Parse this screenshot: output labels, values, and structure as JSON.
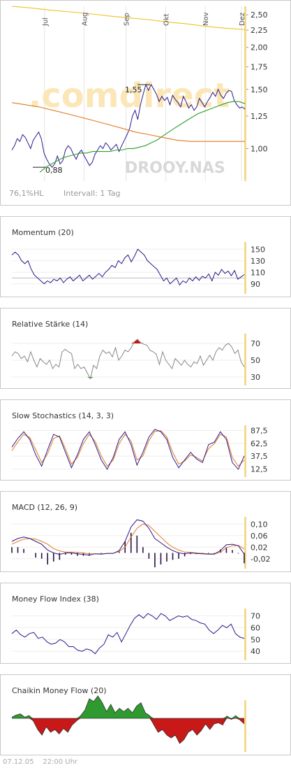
{
  "symbol_watermark": "DROOY.NAS",
  "brand_watermark": ".comdirect",
  "colors": {
    "accent_axis": "#f5d98a",
    "line": "#2a1a8c",
    "sma_fast": "#2aa02a",
    "sma_slow": "#e07a20",
    "channel": "#f0c020",
    "up": "#d01010",
    "down": "#20a020"
  },
  "main": {
    "months": [
      "Jul",
      "Aug",
      "Sep",
      "Okt",
      "Nov",
      "Dez"
    ],
    "y_ticks": [
      "2,50",
      "2,25",
      "2,00",
      "1,75",
      "1,50",
      "1,25",
      "1,00"
    ],
    "high_label": "1,55",
    "low_label": "0,88",
    "info_left": "76,1%HL",
    "info_right": "Intervall: 1 Tag"
  },
  "indicators": [
    {
      "key": "momentum",
      "title": "Momentum (20)",
      "ticks": [
        "150",
        "130",
        "110",
        "90"
      ]
    },
    {
      "key": "rsi",
      "title": "Relative Stärke (14)",
      "ticks": [
        "70",
        "50",
        "30"
      ]
    },
    {
      "key": "stoch",
      "title": "Slow Stochastics (14, 3, 3)",
      "ticks": [
        "87,5",
        "62,5",
        "37,5",
        "12,5"
      ]
    },
    {
      "key": "macd",
      "title": "MACD (12, 26, 9)",
      "ticks": [
        "0,10",
        "0,06",
        "0,02",
        "-0,02"
      ]
    },
    {
      "key": "mfi",
      "title": "Money Flow Index (38)",
      "ticks": [
        "70",
        "60",
        "50",
        "40"
      ]
    },
    {
      "key": "cmf",
      "title": "Chaikin Money Flow (20)",
      "ticks": []
    }
  ],
  "footer": {
    "date": "07.12.05",
    "time": "22:00 Uhr"
  },
  "chart_data": [
    {
      "type": "line",
      "title": "",
      "x_ticks": [
        "Jul",
        "Aug",
        "Sep",
        "Okt",
        "Nov",
        "Dez"
      ],
      "ylim": [
        0.8,
        2.65
      ],
      "log_scale": true,
      "annotations": [
        {
          "label": "1,55",
          "y": 1.55
        },
        {
          "label": "0,88",
          "y": 0.88
        }
      ],
      "series": [
        {
          "values": [
            0.99,
            1.02,
            1.07,
            1.05,
            1.1,
            1.08,
            1.04,
            1.0,
            1.06,
            1.09,
            1.12,
            1.07,
            0.97,
            0.93,
            0.9,
            0.88,
            0.9,
            0.95,
            0.9,
            0.92,
            0.99,
            1.02,
            1.0,
            0.96,
            0.93,
            0.97,
            0.99,
            0.95,
            0.92,
            0.89,
            0.91,
            0.96,
            0.99,
            1.02,
            1.0,
            1.04,
            1.02,
            0.99,
            1.01,
            1.03,
            0.98,
            1.02,
            1.06,
            1.1,
            1.15,
            1.25,
            1.3,
            1.22,
            1.35,
            1.45,
            1.55,
            1.49,
            1.55,
            1.5,
            1.45,
            1.38,
            1.43,
            1.39,
            1.42,
            1.35,
            1.44,
            1.4,
            1.37,
            1.33,
            1.43,
            1.38,
            1.32,
            1.35,
            1.3,
            1.33,
            1.41,
            1.37,
            1.33,
            1.38,
            1.42,
            1.47,
            1.43,
            1.5,
            1.44,
            1.41,
            1.46,
            1.49,
            1.48,
            1.39,
            1.35,
            1.32,
            1.33,
            1.31
          ]
        },
        {
          "values": [
            0.85,
            0.88,
            0.9,
            0.92,
            0.94,
            0.95,
            0.96,
            0.97,
            0.97,
            0.98,
            0.98,
            0.98,
            0.98,
            0.99,
            0.99,
            1.0,
            1.0,
            1.01,
            1.02,
            1.04,
            1.06,
            1.09,
            1.12,
            1.15,
            1.18,
            1.21,
            1.24,
            1.27,
            1.29,
            1.31,
            1.33,
            1.35,
            1.37,
            1.38,
            1.38,
            1.36
          ]
        },
        {
          "values": [
            1.37,
            1.35,
            1.33,
            1.3,
            1.27,
            1.24,
            1.21,
            1.18,
            1.15,
            1.12,
            1.1,
            1.08,
            1.06,
            1.05,
            1.05,
            1.05,
            1.05,
            1.05
          ]
        },
        {
          "values": [
            2.65,
            2.62,
            2.58,
            2.55,
            2.52,
            2.48,
            2.45,
            2.42,
            2.38,
            2.35,
            2.31,
            2.28,
            2.26
          ]
        }
      ]
    },
    {
      "type": "line",
      "title": "Momentum (20)",
      "ylim": [
        80,
        160
      ],
      "reference": 100,
      "series": [
        {
          "values": [
            140,
            145,
            140,
            130,
            125,
            130,
            115,
            105,
            100,
            95,
            90,
            95,
            92,
            98,
            95,
            100,
            92,
            98,
            102,
            95,
            100,
            105,
            95,
            100,
            105,
            98,
            103,
            108,
            102,
            110,
            115,
            122,
            118,
            130,
            125,
            135,
            140,
            128,
            138,
            150,
            145,
            140,
            130,
            125,
            120,
            115,
            105,
            95,
            100,
            90,
            95,
            100,
            88,
            95,
            92,
            100,
            95,
            102,
            96,
            103,
            100,
            107,
            95,
            110,
            105,
            115,
            108,
            112,
            104,
            113,
            98,
            102,
            106
          ]
        }
      ]
    },
    {
      "type": "line",
      "title": "Relative Stärke (14)",
      "ylim": [
        25,
        80
      ],
      "overbought": 70,
      "oversold": 30,
      "series": [
        {
          "values": [
            55,
            60,
            58,
            52,
            55,
            48,
            60,
            50,
            42,
            52,
            48,
            45,
            50,
            40,
            45,
            42,
            60,
            63,
            60,
            58,
            40,
            45,
            40,
            42,
            35,
            28,
            44,
            40,
            55,
            62,
            58,
            60,
            54,
            65,
            50,
            55,
            62,
            60,
            65,
            72,
            75,
            71,
            69,
            68,
            62,
            60,
            57,
            45,
            60,
            50,
            45,
            40,
            52,
            48,
            44,
            50,
            45,
            42,
            48,
            46,
            55,
            44,
            50,
            56,
            50,
            60,
            65,
            62,
            68,
            70,
            66,
            58,
            62,
            48,
            42
          ]
        }
      ]
    },
    {
      "type": "line",
      "title": "Slow Stochastics (14, 3, 3)",
      "ylim": [
        5,
        95
      ],
      "series": [
        {
          "values": [
            55,
            72,
            85,
            70,
            40,
            18,
            50,
            80,
            75,
            45,
            15,
            40,
            70,
            85,
            60,
            30,
            12,
            35,
            70,
            85,
            60,
            20,
            45,
            75,
            90,
            85,
            70,
            35,
            15,
            30,
            45,
            32,
            25,
            60,
            65,
            85,
            70,
            25,
            12,
            38
          ]
        },
        {
          "values": [
            48,
            65,
            80,
            74,
            50,
            25,
            42,
            72,
            77,
            52,
            22,
            35,
            62,
            80,
            66,
            38,
            18,
            30,
            62,
            80,
            67,
            30,
            38,
            68,
            86,
            87,
            75,
            45,
            22,
            28,
            40,
            35,
            28,
            52,
            62,
            80,
            75,
            35,
            18,
            30
          ]
        }
      ]
    },
    {
      "type": "line",
      "title": "MACD (12, 26, 9)",
      "ylim": [
        -0.04,
        0.12
      ],
      "series": [
        {
          "values": [
            0.04,
            0.05,
            0.055,
            0.05,
            0.04,
            0.03,
            0.01,
            0.0,
            -0.005,
            0.0,
            0.0,
            -0.003,
            -0.005,
            -0.008,
            -0.003,
            -0.004,
            -0.002,
            -0.002,
            0.008,
            0.04,
            0.09,
            0.115,
            0.11,
            0.085,
            0.05,
            0.035,
            0.02,
            0.008,
            0.0,
            -0.003,
            0.0,
            -0.002,
            -0.003,
            -0.004,
            -0.004,
            0.008,
            0.028,
            0.03,
            0.025,
            -0.004
          ]
        },
        {
          "values": [
            0.03,
            0.04,
            0.048,
            0.05,
            0.048,
            0.04,
            0.03,
            0.015,
            0.007,
            0.003,
            0.003,
            0.002,
            0.0,
            -0.003,
            -0.003,
            -0.003,
            -0.002,
            -0.001,
            0.005,
            0.02,
            0.055,
            0.085,
            0.1,
            0.095,
            0.075,
            0.055,
            0.035,
            0.02,
            0.01,
            0.003,
            0.002,
            0.0,
            -0.002,
            -0.003,
            -0.003,
            0.002,
            0.018,
            0.025,
            0.026,
            0.014
          ]
        }
      ]
    },
    {
      "type": "line",
      "title": "Money Flow Index (38)",
      "ylim": [
        36,
        75
      ],
      "series": [
        {
          "values": [
            55,
            58,
            54,
            52,
            55,
            56,
            51,
            52,
            48,
            46,
            47,
            50,
            48,
            44,
            44,
            41,
            40,
            42,
            41,
            38,
            43,
            46,
            54,
            52,
            56,
            48,
            55,
            62,
            68,
            71,
            68,
            72,
            70,
            67,
            72,
            70,
            66,
            68,
            70,
            69,
            70,
            67,
            66,
            64,
            63,
            58,
            55,
            58,
            62,
            60,
            63,
            55,
            52,
            51
          ]
        }
      ]
    },
    {
      "type": "area",
      "title": "Chaikin Money Flow (20)",
      "ylim": [
        -0.5,
        0.5
      ],
      "reference": 0,
      "series": [
        {
          "values": [
            0.02,
            0.06,
            0.08,
            0.02,
            0.05,
            -0.05,
            -0.2,
            -0.3,
            -0.15,
            -0.25,
            -0.2,
            -0.28,
            -0.18,
            -0.25,
            -0.12,
            -0.05,
            0.05,
            0.15,
            0.35,
            0.3,
            0.4,
            0.28,
            0.12,
            0.25,
            0.1,
            0.18,
            0.12,
            0.18,
            0.1,
            0.22,
            0.28,
            0.1,
            0.05,
            -0.12,
            -0.25,
            -0.2,
            -0.3,
            -0.35,
            -0.3,
            -0.45,
            -0.38,
            -0.25,
            -0.2,
            -0.3,
            -0.22,
            -0.1,
            -0.2,
            -0.1,
            -0.08,
            -0.12,
            0.04,
            -0.02,
            0.05,
            -0.03,
            -0.1
          ]
        }
      ]
    }
  ]
}
